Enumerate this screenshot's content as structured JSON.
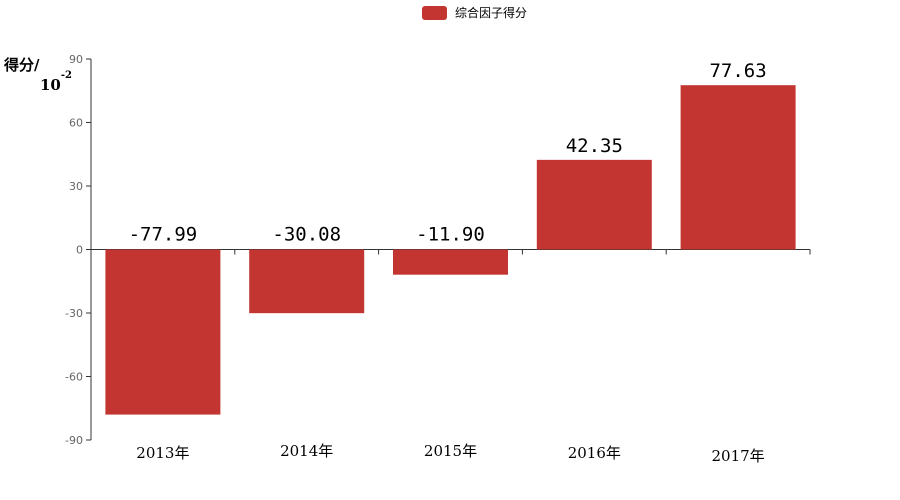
{
  "chart_data": {
    "type": "bar",
    "categories": [
      "2013年",
      "2014年",
      "2015年",
      "2016年",
      "2017年"
    ],
    "series": [
      {
        "name": "综合因子得分",
        "values": [
          -77.99,
          -30.08,
          -11.9,
          42.35,
          77.63
        ]
      }
    ],
    "data_labels": [
      "-77.99",
      "-30.08",
      "-11.90",
      "42.35",
      "77.63"
    ],
    "ylabel": "得分/",
    "yunit_base": "10",
    "yunit_exp": "-2",
    "ylim": [
      -90,
      90
    ],
    "yticks": [
      -90,
      -60,
      -30,
      0,
      30,
      60,
      90
    ],
    "legend_position": "top-center",
    "grid": false,
    "colors": {
      "bar": "#c23531",
      "axis": "#333333"
    }
  }
}
